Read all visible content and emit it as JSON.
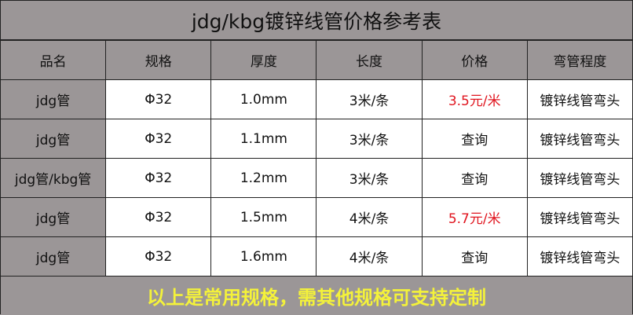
{
  "title": "jdg/kbg镀锌线管价格参考表",
  "headers": [
    "品名",
    "规格",
    "厚度",
    "长度",
    "价格",
    "弯管程度"
  ],
  "rows": [
    [
      "jdg管",
      "Φ32",
      "1.0mm",
      "3米/条",
      "3.5元/米",
      "镀锌线管弯头"
    ],
    [
      "jdg管",
      "Φ32",
      "1.1mm",
      "3米/条",
      "查询",
      "镀锌线管弯头"
    ],
    [
      "jdg管/kbg管",
      "Φ32",
      "1.2mm",
      "3米/条",
      "查询",
      "镀锌线管弯头"
    ],
    [
      "jdg管",
      "Φ32",
      "1.5mm",
      "4米/条",
      "5.7元/米",
      "镀锌线管弯头"
    ],
    [
      "jdg管",
      "Φ32",
      "1.6mm",
      "4米/条",
      "查询",
      "镀锌线管弯头"
    ]
  ],
  "footer": "以上是常用规格，需其他规格可支持定制",
  "colors": {
    "background": "#9b9697",
    "price_highlight": "#e0141e",
    "footer_text": "#f4f23a"
  }
}
